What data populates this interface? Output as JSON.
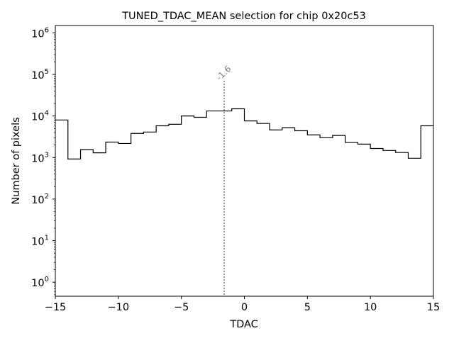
{
  "chart_data": {
    "type": "histogram-step",
    "title": "TUNED_TDAC_MEAN selection for chip 0x20c53",
    "xlabel": "TDAC",
    "ylabel": "Number of pixels",
    "xlim": [
      -15,
      15
    ],
    "ylim": [
      0.46,
      1500000
    ],
    "yscale": "log",
    "grid": false,
    "bin_edges": [
      -15,
      -14,
      -13,
      -12,
      -11,
      -10,
      -9,
      -8,
      -7,
      -6,
      -5,
      -4,
      -3,
      -2,
      -1,
      0,
      1,
      2,
      3,
      4,
      5,
      6,
      7,
      8,
      9,
      10,
      11,
      12,
      13,
      14,
      15
    ],
    "counts": [
      8000,
      920,
      1550,
      1300,
      2350,
      2180,
      3800,
      4100,
      5800,
      6300,
      10000,
      9300,
      13200,
      13200,
      14900,
      7600,
      6600,
      4600,
      5200,
      4400,
      3500,
      3000,
      3400,
      2300,
      2100,
      1650,
      1480,
      1320,
      960,
      5800
    ],
    "xticks": [
      {
        "value": -15,
        "label": "−15"
      },
      {
        "value": -10,
        "label": "−10"
      },
      {
        "value": -5,
        "label": "−5"
      },
      {
        "value": 0,
        "label": "0"
      },
      {
        "value": 5,
        "label": "5"
      },
      {
        "value": 10,
        "label": "10"
      },
      {
        "value": 15,
        "label": "15"
      }
    ],
    "yticks": [
      {
        "exp": 0,
        "base": "10",
        "sup": "0"
      },
      {
        "exp": 1,
        "base": "10",
        "sup": "1"
      },
      {
        "exp": 2,
        "base": "10",
        "sup": "2"
      },
      {
        "exp": 3,
        "base": "10",
        "sup": "3"
      },
      {
        "exp": 4,
        "base": "10",
        "sup": "4"
      },
      {
        "exp": 5,
        "base": "10",
        "sup": "5"
      },
      {
        "exp": 6,
        "base": "10",
        "sup": "6"
      }
    ],
    "annotation": {
      "x": -1.6,
      "y_top": 70000,
      "label": "-1.6",
      "color": "#808080"
    },
    "line_color": "#000000"
  }
}
